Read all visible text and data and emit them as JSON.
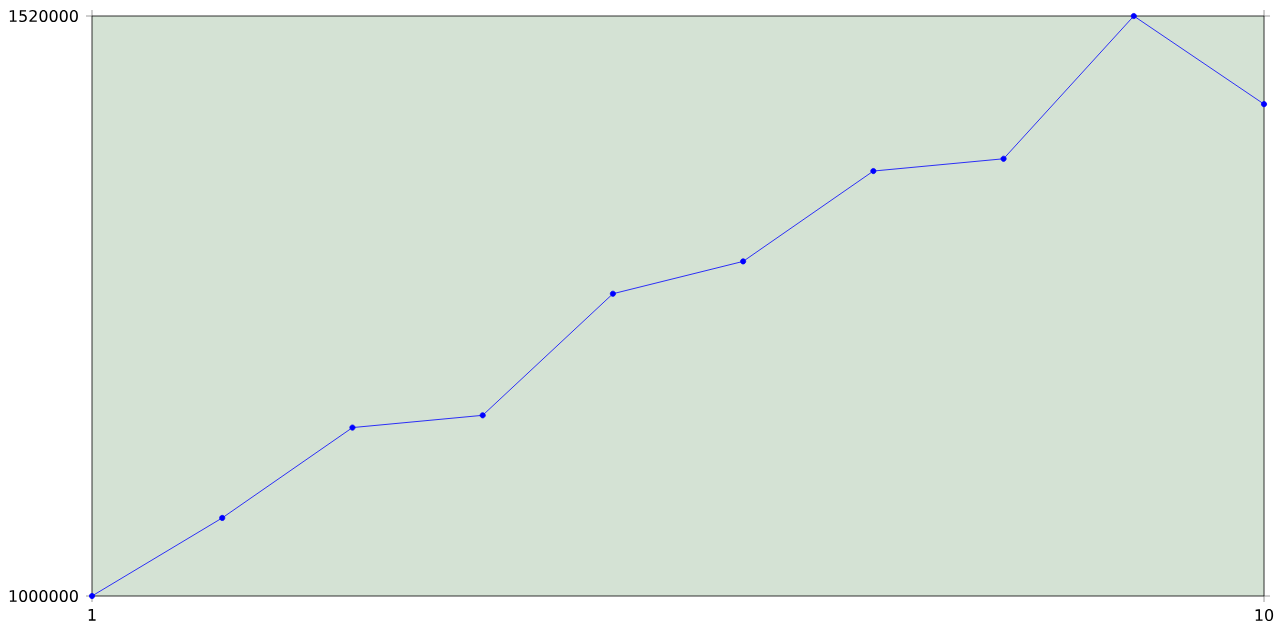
{
  "chart_data": {
    "type": "line",
    "x": [
      1,
      2,
      3,
      4,
      5,
      6,
      7,
      8,
      9,
      10
    ],
    "series": [
      {
        "color": "#0000ff",
        "values": [
          1000000,
          1070000,
          1151000,
          1162000,
          1271000,
          1300000,
          1381000,
          1392000,
          1520000,
          1441000
        ]
      }
    ],
    "xlim": [
      1,
      10
    ],
    "ylim": [
      1000000,
      1520000
    ],
    "xticks": [
      1,
      10
    ],
    "yticks": [
      1000000,
      1520000
    ],
    "grid": false,
    "marker": "circle",
    "line_style": "solid"
  }
}
